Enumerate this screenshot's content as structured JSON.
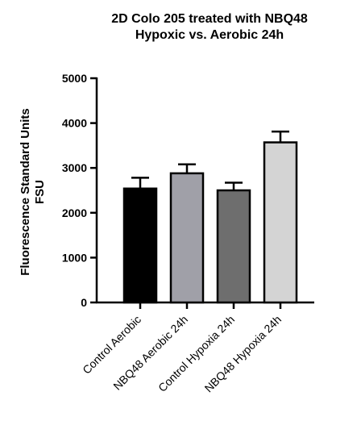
{
  "chart_data": {
    "type": "bar",
    "title_lines": [
      "2D Colo 205 treated with NBQ48",
      "Hypoxic vs. Aerobic  24h"
    ],
    "ylabel_lines": [
      "Fluorescence Standard Units",
      "FSU"
    ],
    "xlabel": "",
    "categories": [
      "Control Aerobic",
      "NBQ48 Aerobic 24h",
      "Control Hypoxia 24h",
      "NBQ48 Hypoxia 24h"
    ],
    "values": [
      2540,
      2880,
      2500,
      3570
    ],
    "error_upper": [
      2780,
      3080,
      2670,
      3810
    ],
    "bar_colors": [
      "#000000",
      "#a0a0a8",
      "#6e6e6e",
      "#d4d4d4"
    ],
    "ylim": [
      0,
      5000
    ],
    "yticks": [
      0,
      1000,
      2000,
      3000,
      4000,
      5000
    ],
    "ytick_labels": [
      "0",
      "1000",
      "2000",
      "3000",
      "4000",
      "5000"
    ],
    "grid": false,
    "legend": "none"
  }
}
